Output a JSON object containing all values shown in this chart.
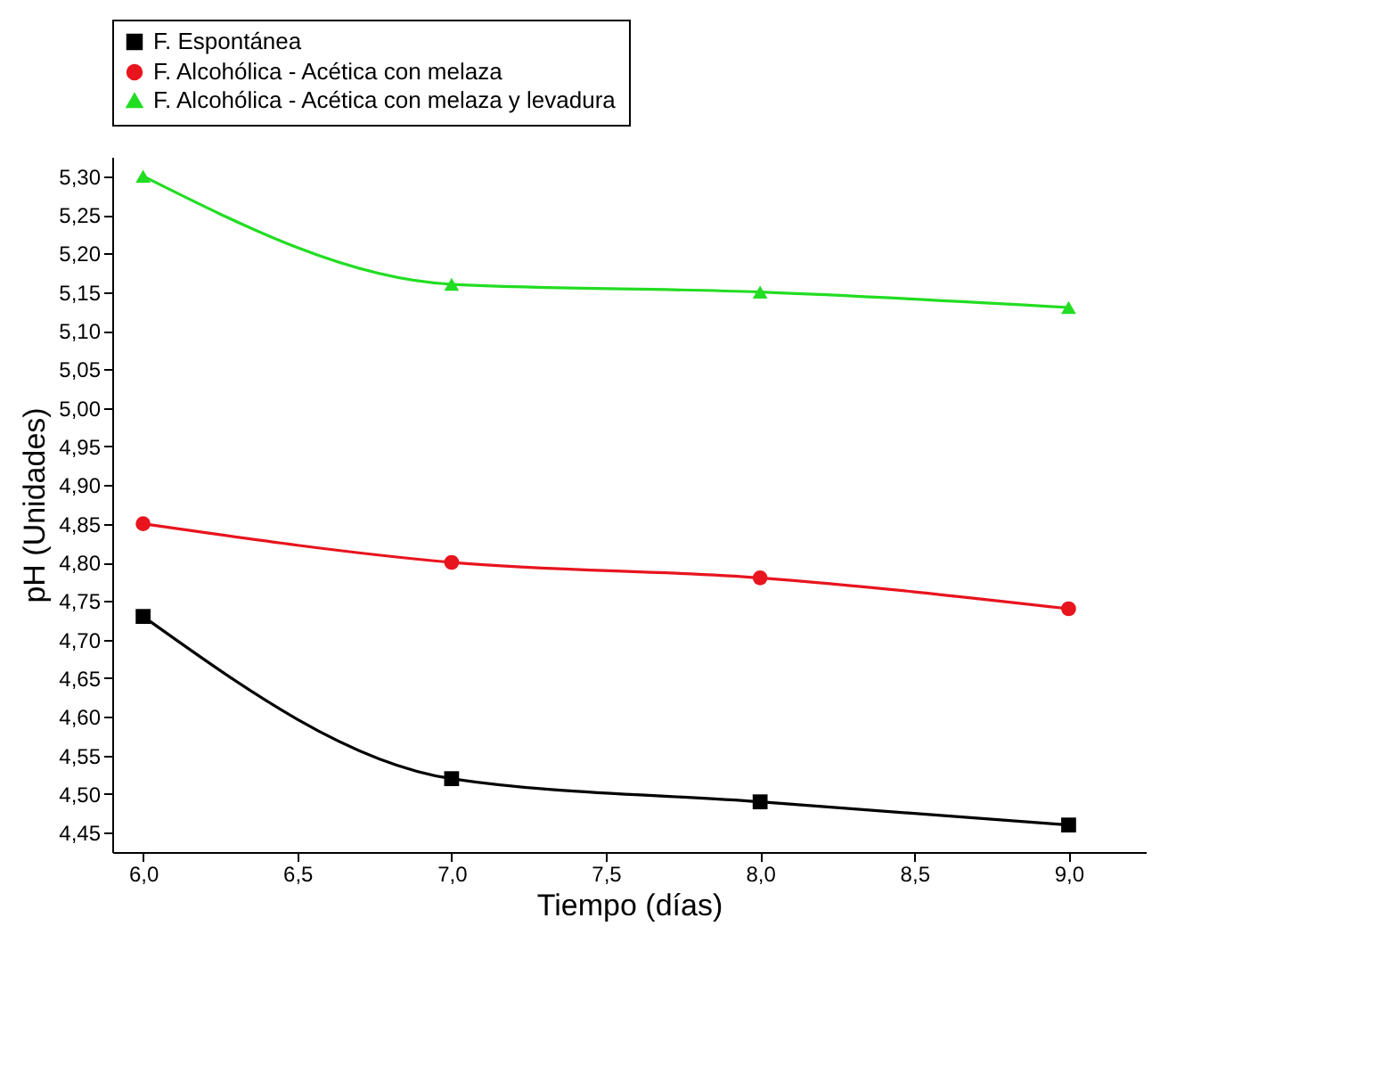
{
  "chart_data": {
    "type": "line",
    "xlabel": "Tiempo (días)",
    "ylabel": "pH (Unidades)",
    "x": [
      6,
      7,
      8,
      9
    ],
    "series": [
      {
        "name": "F. Espontánea",
        "color": "#000000",
        "marker": "square",
        "values": [
          4.73,
          4.52,
          4.49,
          4.46
        ]
      },
      {
        "name": "F. Alcohólica - Acética con melaza",
        "color": "#e8141e",
        "marker": "circle",
        "values": [
          4.85,
          4.8,
          4.78,
          4.74
        ]
      },
      {
        "name": "F. Alcohólica - Acética con melaza y levadura",
        "color": "#22dd22",
        "marker": "triangle",
        "values": [
          5.3,
          5.16,
          5.15,
          5.13
        ]
      }
    ],
    "xlim": [
      5.9,
      9.25
    ],
    "ylim": [
      4.425,
      5.325
    ],
    "xticks": [
      {
        "value": 6,
        "label": "6,0"
      },
      {
        "value": 6.5,
        "label": "6,5"
      },
      {
        "value": 7,
        "label": "7,0"
      },
      {
        "value": 7.5,
        "label": "7,5"
      },
      {
        "value": 8,
        "label": "8,0"
      },
      {
        "value": 8.5,
        "label": "8,5"
      },
      {
        "value": 9,
        "label": "9,0"
      }
    ],
    "yticks": [
      {
        "value": 4.45,
        "label": "4,45"
      },
      {
        "value": 4.5,
        "label": "4,50"
      },
      {
        "value": 4.55,
        "label": "4,55"
      },
      {
        "value": 4.6,
        "label": "4,60"
      },
      {
        "value": 4.65,
        "label": "4,65"
      },
      {
        "value": 4.7,
        "label": "4,70"
      },
      {
        "value": 4.75,
        "label": "4,75"
      },
      {
        "value": 4.8,
        "label": "4,80"
      },
      {
        "value": 4.85,
        "label": "4,85"
      },
      {
        "value": 4.9,
        "label": "4,90"
      },
      {
        "value": 4.95,
        "label": "4,95"
      },
      {
        "value": 5.0,
        "label": "5,00"
      },
      {
        "value": 5.05,
        "label": "5,05"
      },
      {
        "value": 5.1,
        "label": "5,10"
      },
      {
        "value": 5.15,
        "label": "5,15"
      },
      {
        "value": 5.2,
        "label": "5,20"
      },
      {
        "value": 5.25,
        "label": "5,25"
      },
      {
        "value": 5.3,
        "label": "5,30"
      }
    ],
    "grid": false,
    "legend": "top",
    "line_style": "solid"
  }
}
